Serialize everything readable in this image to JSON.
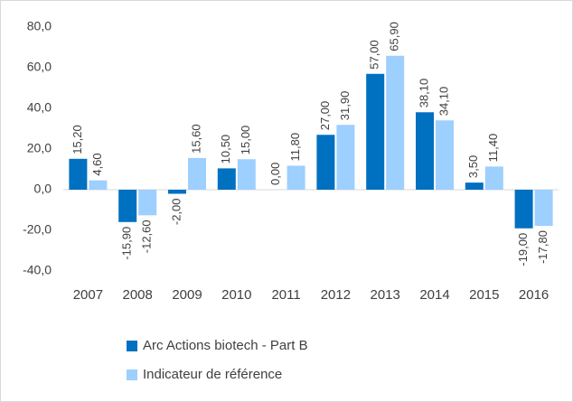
{
  "chart_data": {
    "type": "bar",
    "categories": [
      "2007",
      "2008",
      "2009",
      "2010",
      "2011",
      "2012",
      "2013",
      "2014",
      "2015",
      "2016"
    ],
    "series": [
      {
        "name": "Arc Actions biotech - Part B",
        "color": "#0070c0",
        "values": [
          15.2,
          -15.9,
          -2.0,
          10.5,
          0.0,
          27.0,
          57.0,
          38.1,
          3.5,
          -19.0
        ],
        "value_labels": [
          "15,20",
          "-15,90",
          "-2,00",
          "10,50",
          "0,00",
          "27,00",
          "57,00",
          "38,10",
          "3,50",
          "-19,00"
        ]
      },
      {
        "name": "Indicateur de référence",
        "color": "#9dcfff",
        "values": [
          4.6,
          -12.6,
          15.6,
          15.0,
          11.8,
          31.9,
          65.9,
          34.1,
          11.4,
          -17.8
        ],
        "value_labels": [
          "4,60",
          "-12,60",
          "15,60",
          "15,00",
          "11,80",
          "31,90",
          "65,90",
          "34,10",
          "11,40",
          "-17,80"
        ]
      }
    ],
    "ylim": [
      -40,
      80
    ],
    "yticks": [
      {
        "value": -40,
        "label": "-40,0"
      },
      {
        "value": -20,
        "label": "-20,0"
      },
      {
        "value": 0,
        "label": "0,0"
      },
      {
        "value": 20,
        "label": "20,0"
      },
      {
        "value": 40,
        "label": "40,0"
      },
      {
        "value": 60,
        "label": "60,0"
      },
      {
        "value": 80,
        "label": "80,0"
      }
    ],
    "legend": "bottom"
  }
}
